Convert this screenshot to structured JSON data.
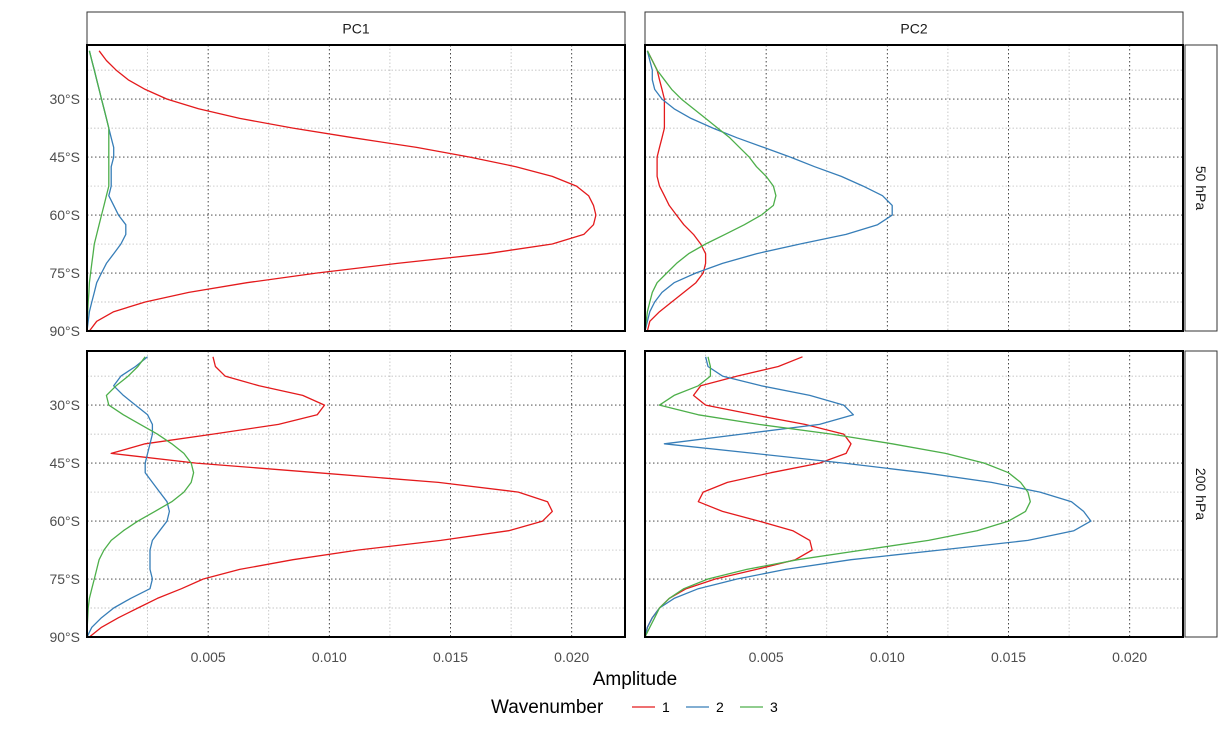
{
  "chart_data": {
    "type": "line",
    "xlabel": "Amplitude",
    "xlim": [
      0,
      0.0222
    ],
    "ylim": [
      -90,
      -16
    ],
    "x_ticks": [
      0.005,
      0.01,
      0.015,
      0.02
    ],
    "x_tick_labels": [
      "0.005",
      "0.010",
      "0.015",
      "0.020"
    ],
    "y_ticks": [
      -30,
      -45,
      -60,
      -75,
      -90
    ],
    "y_tick_labels": [
      "30°S",
      "45°S",
      "60°S",
      "75°S",
      "90°S"
    ],
    "columns": [
      "PC1",
      "PC2"
    ],
    "rows": [
      "50 hPa",
      "200 hPa"
    ],
    "legend": {
      "title": "Wavenumber",
      "position": "bottom",
      "entries": [
        {
          "label": "1",
          "color": "#e41a1c"
        },
        {
          "label": "2",
          "color": "#377eb8"
        },
        {
          "label": "3",
          "color": "#4daf4a"
        }
      ]
    },
    "panels": [
      {
        "column": "PC1",
        "row": "50 hPa",
        "series": [
          {
            "wavenumber": "1",
            "color": "#e41a1c",
            "lat": [
              -17.5,
              -20,
              -22.5,
              -25,
              -27.5,
              -30,
              -32.5,
              -35,
              -37.5,
              -40,
              -42.5,
              -45,
              -47.5,
              -50,
              -52.5,
              -55,
              -57.5,
              -60,
              -62.5,
              -65,
              -67.5,
              -70,
              -72.5,
              -75,
              -77.5,
              -80,
              -82.5,
              -85,
              -87.5,
              -90
            ],
            "x": [
              0.0005,
              0.0008,
              0.0012,
              0.0017,
              0.0024,
              0.0033,
              0.0046,
              0.0063,
              0.0085,
              0.011,
              0.0136,
              0.0158,
              0.0177,
              0.0192,
              0.0202,
              0.0207,
              0.0209,
              0.021,
              0.0209,
              0.0205,
              0.0192,
              0.0165,
              0.0128,
              0.0095,
              0.0066,
              0.0042,
              0.0024,
              0.0011,
              0.0004,
              0.0001
            ]
          },
          {
            "wavenumber": "2",
            "color": "#377eb8",
            "lat": [
              -17.5,
              -20,
              -22.5,
              -25,
              -27.5,
              -30,
              -32.5,
              -35,
              -37.5,
              -40,
              -42.5,
              -45,
              -47.5,
              -50,
              -52.5,
              -55,
              -57.5,
              -60,
              -62.5,
              -65,
              -67.5,
              -70,
              -72.5,
              -75,
              -77.5,
              -80,
              -82.5,
              -85,
              -87.5,
              -90
            ],
            "x": [
              0.0001,
              0.0002,
              0.0003,
              0.0004,
              0.0005,
              0.0006,
              0.0007,
              0.0008,
              0.0009,
              0.001,
              0.0011,
              0.0011,
              0.001,
              0.001,
              0.001,
              0.0009,
              0.0011,
              0.0013,
              0.0016,
              0.0016,
              0.0014,
              0.0011,
              0.0008,
              0.0006,
              0.0004,
              0.0003,
              0.0002,
              0.0001,
              5e-05,
              0.0
            ]
          },
          {
            "wavenumber": "3",
            "color": "#4daf4a",
            "lat": [
              -17.5,
              -20,
              -22.5,
              -25,
              -27.5,
              -30,
              -32.5,
              -35,
              -37.5,
              -40,
              -42.5,
              -45,
              -47.5,
              -50,
              -52.5,
              -55,
              -57.5,
              -60,
              -62.5,
              -65,
              -67.5,
              -70,
              -72.5,
              -75,
              -77.5,
              -80,
              -82.5,
              -85,
              -87.5,
              -90
            ],
            "x": [
              0.0001,
              0.0002,
              0.0003,
              0.0004,
              0.0005,
              0.0006,
              0.0007,
              0.0008,
              0.0009,
              0.0009,
              0.0009,
              0.0009,
              0.0009,
              0.0009,
              0.0009,
              0.0008,
              0.0007,
              0.0006,
              0.0005,
              0.0004,
              0.0003,
              0.00025,
              0.0002,
              0.00015,
              0.0001,
              8e-05,
              5e-05,
              3e-05,
              1e-05,
              0.0
            ]
          }
        ]
      },
      {
        "column": "PC2",
        "row": "50 hPa",
        "series": [
          {
            "wavenumber": "1",
            "color": "#e41a1c",
            "lat": [
              -17.5,
              -20,
              -22.5,
              -25,
              -27.5,
              -30,
              -32.5,
              -35,
              -37.5,
              -40,
              -42.5,
              -45,
              -47.5,
              -50,
              -52.5,
              -55,
              -57.5,
              -60,
              -62.5,
              -65,
              -67.5,
              -70,
              -72.5,
              -75,
              -77.5,
              -80,
              -82.5,
              -85,
              -87.5,
              -90
            ],
            "x": [
              0.0001,
              0.0003,
              0.0005,
              0.0006,
              0.0007,
              0.0008,
              0.0008,
              0.0008,
              0.0008,
              0.0007,
              0.0006,
              0.0005,
              0.0005,
              0.0005,
              0.0006,
              0.0008,
              0.001,
              0.0013,
              0.0016,
              0.002,
              0.0023,
              0.0025,
              0.0025,
              0.0024,
              0.0021,
              0.0016,
              0.0011,
              0.0006,
              0.0002,
              0.0001
            ]
          },
          {
            "wavenumber": "2",
            "color": "#377eb8",
            "lat": [
              -17.5,
              -20,
              -22.5,
              -25,
              -27.5,
              -30,
              -32.5,
              -35,
              -37.5,
              -40,
              -42.5,
              -45,
              -47.5,
              -50,
              -52.5,
              -55,
              -57.5,
              -60,
              -62.5,
              -65,
              -67.5,
              -70,
              -72.5,
              -75,
              -77.5,
              -80,
              -82.5,
              -85,
              -87.5,
              -90
            ],
            "x": [
              0.0001,
              0.0002,
              0.0003,
              0.0003,
              0.0004,
              0.0007,
              0.0012,
              0.0019,
              0.0028,
              0.0038,
              0.0049,
              0.006,
              0.007,
              0.0081,
              0.009,
              0.0098,
              0.0102,
              0.0102,
              0.0096,
              0.0083,
              0.0064,
              0.0046,
              0.0032,
              0.0021,
              0.0012,
              0.0007,
              0.0004,
              0.0002,
              0.0001,
              0.0
            ]
          },
          {
            "wavenumber": "3",
            "color": "#4daf4a",
            "lat": [
              -17.5,
              -20,
              -22.5,
              -25,
              -27.5,
              -30,
              -32.5,
              -35,
              -37.5,
              -40,
              -42.5,
              -45,
              -47.5,
              -50,
              -52.5,
              -55,
              -57.5,
              -60,
              -62.5,
              -65,
              -67.5,
              -70,
              -72.5,
              -75,
              -77.5,
              -80,
              -82.5,
              -85,
              -87.5,
              -90
            ],
            "x": [
              0.0001,
              0.0003,
              0.0005,
              0.0008,
              0.0011,
              0.0015,
              0.002,
              0.0025,
              0.003,
              0.0035,
              0.0039,
              0.0043,
              0.0046,
              0.005,
              0.0053,
              0.0054,
              0.0053,
              0.0048,
              0.0041,
              0.0033,
              0.0025,
              0.0018,
              0.0013,
              0.0009,
              0.0005,
              0.0003,
              0.0002,
              0.0001,
              5e-05,
              0.0
            ]
          }
        ]
      },
      {
        "column": "PC1",
        "row": "200 hPa",
        "series": [
          {
            "wavenumber": "1",
            "color": "#e41a1c",
            "lat": [
              -17.5,
              -20,
              -22.5,
              -25,
              -27.5,
              -30,
              -32.5,
              -35,
              -37.5,
              -40,
              -42.5,
              -45,
              -47.5,
              -50,
              -52.5,
              -55,
              -57.5,
              -60,
              -62.5,
              -65,
              -67.5,
              -70,
              -72.5,
              -75,
              -77.5,
              -80,
              -82.5,
              -85,
              -87.5,
              -90
            ],
            "x": [
              0.0052,
              0.0053,
              0.0057,
              0.0071,
              0.0089,
              0.0098,
              0.0095,
              0.0079,
              0.0052,
              0.0024,
              0.001,
              0.0045,
              0.0095,
              0.0145,
              0.0178,
              0.019,
              0.0192,
              0.0188,
              0.0174,
              0.0146,
              0.0112,
              0.0085,
              0.0063,
              0.0048,
              0.0039,
              0.0029,
              0.0021,
              0.0013,
              0.0006,
              0.0001
            ]
          },
          {
            "wavenumber": "2",
            "color": "#377eb8",
            "lat": [
              -17.5,
              -20,
              -22.5,
              -25,
              -27.5,
              -30,
              -32.5,
              -35,
              -37.5,
              -40,
              -42.5,
              -45,
              -47.5,
              -50,
              -52.5,
              -55,
              -57.5,
              -60,
              -62.5,
              -65,
              -67.5,
              -70,
              -72.5,
              -75,
              -77.5,
              -80,
              -82.5,
              -85,
              -87.5,
              -90
            ],
            "x": [
              0.0025,
              0.002,
              0.0014,
              0.0011,
              0.0015,
              0.002,
              0.0025,
              0.0027,
              0.0027,
              0.0026,
              0.0025,
              0.0024,
              0.0024,
              0.0027,
              0.003,
              0.0033,
              0.0034,
              0.0033,
              0.003,
              0.0027,
              0.0026,
              0.0026,
              0.0026,
              0.0027,
              0.0026,
              0.0018,
              0.0011,
              0.0006,
              0.0002,
              0.0
            ]
          },
          {
            "wavenumber": "3",
            "color": "#4daf4a",
            "lat": [
              -17.5,
              -20,
              -22.5,
              -25,
              -27.5,
              -30,
              -32.5,
              -35,
              -37.5,
              -40,
              -42.5,
              -45,
              -47.5,
              -50,
              -52.5,
              -55,
              -57.5,
              -60,
              -62.5,
              -65,
              -67.5,
              -70,
              -72.5,
              -75,
              -77.5,
              -80,
              -82.5,
              -85,
              -87.5,
              -90
            ],
            "x": [
              0.0024,
              0.0021,
              0.0017,
              0.0012,
              0.0008,
              0.0009,
              0.0015,
              0.0022,
              0.0029,
              0.0035,
              0.004,
              0.0043,
              0.0044,
              0.0043,
              0.004,
              0.0035,
              0.0028,
              0.0021,
              0.0015,
              0.001,
              0.0007,
              0.0005,
              0.0004,
              0.0003,
              0.0002,
              0.0001,
              5e-05,
              3e-05,
              1e-05,
              0.0
            ]
          }
        ]
      },
      {
        "column": "PC2",
        "row": "200 hPa",
        "series": [
          {
            "wavenumber": "1",
            "color": "#e41a1c",
            "lat": [
              -17.5,
              -20,
              -22.5,
              -25,
              -27.5,
              -30,
              -32.5,
              -35,
              -37.5,
              -40,
              -42.5,
              -45,
              -47.5,
              -50,
              -52.5,
              -55,
              -57.5,
              -60,
              -62.5,
              -65,
              -67.5,
              -70,
              -72.5,
              -75,
              -77.5,
              -80,
              -82.5,
              -85,
              -87.5,
              -90
            ],
            "x": [
              0.0065,
              0.0055,
              0.0038,
              0.0023,
              0.002,
              0.0025,
              0.0045,
              0.0066,
              0.0082,
              0.0085,
              0.0083,
              0.0072,
              0.0052,
              0.0034,
              0.0024,
              0.0022,
              0.0032,
              0.0047,
              0.0061,
              0.0068,
              0.0069,
              0.0062,
              0.0046,
              0.0029,
              0.0017,
              0.001,
              0.0006,
              0.0003,
              0.0001,
              0.0
            ]
          },
          {
            "wavenumber": "2",
            "color": "#377eb8",
            "lat": [
              -17.5,
              -20,
              -22.5,
              -25,
              -27.5,
              -30,
              -32.5,
              -35,
              -37.5,
              -40,
              -42.5,
              -45,
              -47.5,
              -50,
              -52.5,
              -55,
              -57.5,
              -60,
              -62.5,
              -65,
              -67.5,
              -70,
              -72.5,
              -75,
              -77.5,
              -80,
              -82.5,
              -85,
              -87.5,
              -90
            ],
            "x": [
              0.0025,
              0.0026,
              0.0032,
              0.0048,
              0.0068,
              0.0082,
              0.0086,
              0.0072,
              0.004,
              0.0008,
              0.0045,
              0.0082,
              0.0115,
              0.0143,
              0.0163,
              0.0176,
              0.0181,
              0.0184,
              0.0177,
              0.0158,
              0.0122,
              0.0085,
              0.0058,
              0.0038,
              0.0022,
              0.0012,
              0.0006,
              0.0003,
              0.0001,
              0.0
            ]
          },
          {
            "wavenumber": "3",
            "color": "#4daf4a",
            "lat": [
              -17.5,
              -20,
              -22.5,
              -25,
              -27.5,
              -30,
              -32.5,
              -35,
              -37.5,
              -40,
              -42.5,
              -45,
              -47.5,
              -50,
              -52.5,
              -55,
              -57.5,
              -60,
              -62.5,
              -65,
              -67.5,
              -70,
              -72.5,
              -75,
              -77.5,
              -80,
              -82.5,
              -85,
              -87.5,
              -90
            ],
            "x": [
              0.0026,
              0.0027,
              0.0027,
              0.0022,
              0.0012,
              0.0006,
              0.0022,
              0.0047,
              0.0077,
              0.0102,
              0.0124,
              0.014,
              0.015,
              0.0155,
              0.0158,
              0.0159,
              0.0157,
              0.015,
              0.0137,
              0.0117,
              0.009,
              0.0063,
              0.0042,
              0.0026,
              0.0016,
              0.001,
              0.0006,
              0.0004,
              0.0002,
              0.0
            ]
          }
        ]
      }
    ]
  }
}
